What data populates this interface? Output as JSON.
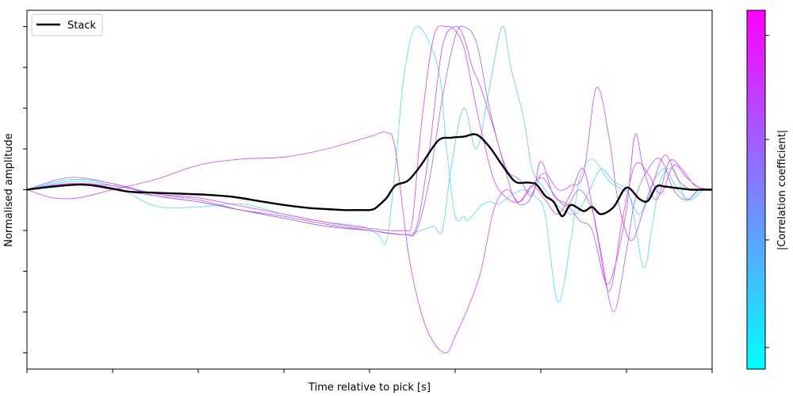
{
  "chart_data": {
    "type": "line",
    "title": "",
    "xlabel": "Time relative to pick [s]",
    "ylabel": "Normalised amplitude",
    "xlim": [
      0,
      8
    ],
    "ylim": [
      -0.88,
      0.88
    ],
    "xticks": [
      0,
      1,
      2,
      3,
      4,
      5,
      6,
      7,
      8
    ],
    "yticks": [
      -0.8,
      -0.6,
      -0.4,
      -0.2,
      0,
      0.2,
      0.4,
      0.6,
      0.8
    ],
    "grid": false,
    "legend": {
      "placement": "top-left",
      "entries": [
        "Stack"
      ]
    },
    "colorbar": {
      "label": "|Correlation coefficient|",
      "colors": [
        "#00ffff",
        "#ff00ff"
      ],
      "ticks": [
        0.06,
        0.36,
        0.64,
        0.93
      ]
    },
    "stack": {
      "name": "Stack",
      "color": "#000000",
      "x": [
        0,
        0.3,
        0.6,
        0.8,
        1.0,
        1.2,
        1.5,
        1.8,
        2.1,
        2.4,
        2.7,
        3.0,
        3.3,
        3.5,
        3.7,
        3.9,
        4.0,
        4.05,
        4.1,
        4.2,
        4.3,
        4.45,
        4.6,
        4.8,
        4.95,
        5.1,
        5.25,
        5.4,
        5.55,
        5.7,
        5.85,
        5.95,
        6.05,
        6.15,
        6.25,
        6.35,
        6.5,
        6.6,
        6.7,
        6.85,
        7.0,
        7.15,
        7.25,
        7.35,
        7.45,
        7.55,
        7.65,
        7.75,
        7.85,
        8.0
      ],
      "y": [
        0,
        0.015,
        0.025,
        0.02,
        0.005,
        -0.01,
        -0.015,
        -0.02,
        -0.025,
        -0.035,
        -0.055,
        -0.075,
        -0.09,
        -0.095,
        -0.1,
        -0.1,
        -0.1,
        -0.095,
        -0.08,
        -0.04,
        0.02,
        0.045,
        0.12,
        0.24,
        0.255,
        0.26,
        0.27,
        0.21,
        0.12,
        0.04,
        0.035,
        0.025,
        -0.03,
        -0.06,
        -0.13,
        -0.075,
        -0.105,
        -0.085,
        -0.12,
        -0.085,
        0.01,
        -0.045,
        -0.055,
        0.015,
        0.015,
        0.01,
        0.005,
        0.0,
        0.0,
        0.0
      ]
    },
    "traces": [
      {
        "color": "#4fdcf2",
        "x": [
          0,
          0.5,
          1.0,
          1.5,
          2.0,
          2.5,
          3.0,
          3.5,
          3.9,
          4.1,
          4.2,
          4.3,
          4.4,
          4.55,
          4.8,
          4.9,
          5.0,
          5.1,
          5.15,
          5.3,
          5.4,
          5.5,
          5.65,
          5.8,
          5.95,
          6.05,
          6.2,
          6.35,
          6.45,
          6.6,
          6.8,
          6.95,
          7.05,
          7.2,
          7.3,
          7.4,
          7.55,
          7.7,
          7.85,
          8.0
        ],
        "y": [
          0,
          0.04,
          0.02,
          -0.08,
          -0.085,
          -0.07,
          -0.12,
          -0.16,
          -0.18,
          -0.22,
          -0.25,
          0.1,
          0.55,
          0.8,
          0.6,
          0.2,
          -0.13,
          -0.13,
          -0.15,
          -0.08,
          -0.06,
          -0.07,
          -0.03,
          0.0,
          -0.04,
          -0.12,
          -0.55,
          -0.25,
          0.05,
          0.15,
          0.04,
          0.0,
          -0.05,
          -0.38,
          -0.18,
          0.05,
          0.1,
          -0.05,
          0.0,
          0.0
        ]
      },
      {
        "color": "#5cc9f2",
        "x": [
          0,
          0.5,
          1.0,
          1.5,
          2.0,
          2.5,
          3.0,
          3.5,
          4.0,
          4.4,
          4.6,
          4.75,
          4.85,
          4.95,
          5.1,
          5.25,
          5.4,
          5.55,
          5.65,
          5.8,
          5.9,
          6.05,
          6.2,
          6.4,
          6.55,
          6.7,
          6.85,
          7.0,
          7.15,
          7.3,
          7.45,
          7.6,
          7.75,
          7.9,
          8.0
        ],
        "y": [
          0,
          0.05,
          0.03,
          -0.03,
          -0.06,
          -0.1,
          -0.14,
          -0.18,
          -0.2,
          -0.22,
          -0.2,
          -0.18,
          -0.2,
          0.1,
          0.4,
          0.2,
          0.5,
          0.8,
          0.6,
          0.35,
          0.1,
          0.0,
          -0.08,
          -0.12,
          -0.02,
          0.1,
          0.04,
          0.0,
          -0.12,
          0.03,
          0.1,
          0.0,
          -0.05,
          0.0,
          0.0
        ]
      },
      {
        "color": "#a361f2",
        "x": [
          0,
          0.5,
          1.0,
          1.5,
          2.0,
          2.5,
          3.0,
          3.5,
          4.0,
          4.4,
          4.55,
          4.7,
          4.85,
          5.0,
          5.1,
          5.25,
          5.4,
          5.55,
          5.7,
          5.85,
          6.0,
          6.15,
          6.3,
          6.45,
          6.6,
          6.7,
          6.85,
          7.0,
          7.1,
          7.25,
          7.4,
          7.55,
          7.7,
          7.85,
          8.0
        ],
        "y": [
          0,
          0.06,
          0.03,
          -0.02,
          -0.05,
          -0.1,
          -0.14,
          -0.18,
          -0.2,
          -0.22,
          -0.2,
          0.05,
          0.45,
          0.75,
          0.8,
          0.72,
          0.4,
          0.15,
          -0.05,
          -0.06,
          0.06,
          -0.02,
          -0.08,
          0.0,
          -0.1,
          -0.3,
          -0.6,
          -0.3,
          -0.05,
          0.1,
          0.15,
          0.0,
          -0.05,
          0.0,
          0.0
        ]
      },
      {
        "color": "#c04cf0",
        "x": [
          0,
          0.5,
          1.0,
          1.5,
          2.0,
          2.5,
          3.0,
          3.5,
          4.0,
          4.4,
          4.55,
          4.7,
          4.85,
          5.0,
          5.1,
          5.2,
          5.3,
          5.45,
          5.6,
          5.75,
          5.9,
          6.0,
          6.15,
          6.3,
          6.45,
          6.6,
          6.75,
          6.85,
          7.0,
          7.1,
          7.2,
          7.35,
          7.5,
          7.65,
          7.8,
          8.0
        ],
        "y": [
          0,
          0.03,
          0.0,
          -0.03,
          -0.06,
          -0.1,
          -0.13,
          -0.17,
          -0.2,
          -0.22,
          -0.18,
          0.2,
          0.7,
          0.8,
          0.75,
          0.6,
          0.5,
          0.3,
          0.1,
          0.05,
          -0.03,
          0.14,
          -0.03,
          -0.07,
          -0.15,
          -0.2,
          -0.45,
          -0.4,
          -0.1,
          0.27,
          0.1,
          -0.05,
          0.14,
          0.1,
          0.02,
          0.0
        ]
      },
      {
        "color": "#d147ee",
        "x": [
          0,
          0.3,
          0.6,
          1.0,
          1.5,
          2.0,
          2.5,
          3.0,
          3.5,
          4.0,
          4.2,
          4.3,
          4.45,
          4.6,
          4.75,
          4.9,
          5.0,
          5.15,
          5.3,
          5.45,
          5.6,
          5.75,
          5.9,
          6.05,
          6.2,
          6.35,
          6.5,
          6.65,
          6.8,
          6.9,
          7.05,
          7.2,
          7.3,
          7.45,
          7.6,
          7.75,
          7.9,
          8.0
        ],
        "y": [
          0,
          -0.04,
          -0.04,
          0.0,
          0.05,
          0.12,
          0.15,
          0.16,
          0.2,
          0.26,
          0.28,
          0.2,
          -0.3,
          -0.6,
          -0.75,
          -0.8,
          -0.72,
          -0.58,
          -0.4,
          -0.1,
          0.0,
          -0.06,
          0.02,
          0.08,
          0.0,
          0.02,
          0.08,
          0.5,
          0.25,
          -0.05,
          -0.25,
          -0.1,
          0.02,
          0.17,
          0.05,
          0.0,
          0.0,
          0.0
        ]
      },
      {
        "color": "#e83df0",
        "x": [
          0,
          0.5,
          1.0,
          1.5,
          2.0,
          2.5,
          3.0,
          3.5,
          4.0,
          4.4,
          4.5,
          4.6,
          4.75,
          4.9,
          5.0,
          5.1,
          5.2,
          5.3,
          5.45,
          5.6,
          5.75,
          5.9,
          6.05,
          6.2,
          6.35,
          6.5,
          6.65,
          6.8,
          6.95,
          7.1,
          7.25,
          7.4,
          7.55,
          7.7,
          7.85,
          8.0
        ],
        "y": [
          0,
          0.03,
          0.02,
          -0.02,
          -0.04,
          -0.08,
          -0.12,
          -0.16,
          -0.19,
          -0.2,
          -0.15,
          0.3,
          0.75,
          0.8,
          0.78,
          0.7,
          0.5,
          0.3,
          0.05,
          -0.04,
          -0.06,
          0.02,
          -0.05,
          -0.12,
          -0.02,
          0.1,
          -0.2,
          -0.5,
          -0.15,
          0.12,
          0.08,
          -0.02,
          0.12,
          0.06,
          0.01,
          0.0
        ]
      }
    ]
  }
}
